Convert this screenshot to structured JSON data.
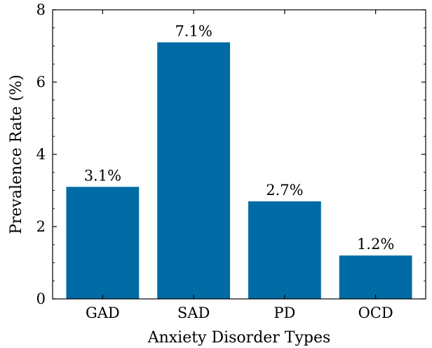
{
  "chart_data": {
    "type": "bar",
    "title": "",
    "xlabel": "Anxiety Disorder Types",
    "ylabel": "Prevalence Rate (%)",
    "categories": [
      "GAD",
      "SAD",
      "PD",
      "OCD"
    ],
    "values": [
      3.1,
      7.1,
      2.7,
      1.2
    ],
    "data_labels": [
      "3.1%",
      "7.1%",
      "2.7%",
      "1.2%"
    ],
    "ylim": [
      0,
      8
    ],
    "yticks": [
      0,
      2,
      4,
      6,
      8
    ],
    "grid": false,
    "bar_color": "#006ba4"
  }
}
